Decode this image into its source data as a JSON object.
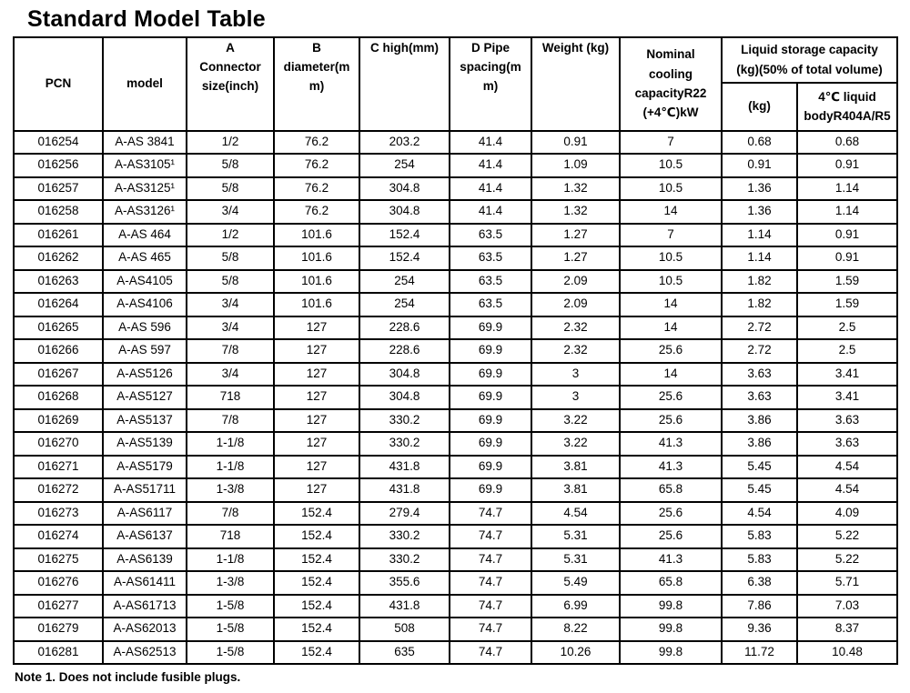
{
  "title": "Standard Model Table",
  "note": "Note 1. Does not include fusible plugs.",
  "table": {
    "headers": {
      "pcn": "PCN",
      "model": "model",
      "connector": "A\nConnector\nsize(inch)",
      "diameter": "B\ndiameter(m\nm)",
      "high": "C high(mm)",
      "pipe": "D Pipe\nspacing(m\nm)",
      "weight": "Weight (kg)",
      "cooling": "Nominal\ncooling\ncapacityR22\n(+4℃)kW",
      "storage_group": "Liquid storage capacity\n(kg)(50% of total volume)",
      "storage_kg": "(kg)",
      "storage_4c": "4℃ liquid\nbodyR404A/R5"
    },
    "rows": [
      [
        "016254",
        "A-AS 3841",
        "1/2",
        "76.2",
        "203.2",
        "41.4",
        "0.91",
        "7",
        "0.68",
        "0.68"
      ],
      [
        "016256",
        "A-AS3105¹",
        "5/8",
        "76.2",
        "254",
        "41.4",
        "1.09",
        "10.5",
        "0.91",
        "0.91"
      ],
      [
        "016257",
        "A-AS3125¹",
        "5/8",
        "76.2",
        "304.8",
        "41.4",
        "1.32",
        "10.5",
        "1.36",
        "1.14"
      ],
      [
        "016258",
        "A-AS3126¹",
        "3/4",
        "76.2",
        "304.8",
        "41.4",
        "1.32",
        "14",
        "1.36",
        "1.14"
      ],
      [
        "016261",
        "A-AS 464",
        "1/2",
        "101.6",
        "152.4",
        "63.5",
        "1.27",
        "7",
        "1.14",
        "0.91"
      ],
      [
        "016262",
        "A-AS 465",
        "5/8",
        "101.6",
        "152.4",
        "63.5",
        "1.27",
        "10.5",
        "1.14",
        "0.91"
      ],
      [
        "016263",
        "A-AS4105",
        "5/8",
        "101.6",
        "254",
        "63.5",
        "2.09",
        "10.5",
        "1.82",
        "1.59"
      ],
      [
        "016264",
        "A-AS4106",
        "3/4",
        "101.6",
        "254",
        "63.5",
        "2.09",
        "14",
        "1.82",
        "1.59"
      ],
      [
        "016265",
        "A-AS 596",
        "3/4",
        "127",
        "228.6",
        "69.9",
        "2.32",
        "14",
        "2.72",
        "2.5"
      ],
      [
        "016266",
        "A-AS 597",
        "7/8",
        "127",
        "228.6",
        "69.9",
        "2.32",
        "25.6",
        "2.72",
        "2.5"
      ],
      [
        "016267",
        "A-AS5126",
        "3/4",
        "127",
        "304.8",
        "69.9",
        "3",
        "14",
        "3.63",
        "3.41"
      ],
      [
        "016268",
        "A-AS5127",
        "718",
        "127",
        "304.8",
        "69.9",
        "3",
        "25.6",
        "3.63",
        "3.41"
      ],
      [
        "016269",
        "A-AS5137",
        "7/8",
        "127",
        "330.2",
        "69.9",
        "3.22",
        "25.6",
        "3.86",
        "3.63"
      ],
      [
        "016270",
        "A-AS5139",
        "1-1/8",
        "127",
        "330.2",
        "69.9",
        "3.22",
        "41.3",
        "3.86",
        "3.63"
      ],
      [
        "016271",
        "A-AS5179",
        "1-1/8",
        "127",
        "431.8",
        "69.9",
        "3.81",
        "41.3",
        "5.45",
        "4.54"
      ],
      [
        "016272",
        "A-AS51711",
        "1-3/8",
        "127",
        "431.8",
        "69.9",
        "3.81",
        "65.8",
        "5.45",
        "4.54"
      ],
      [
        "016273",
        "A-AS6117",
        "7/8",
        "152.4",
        "279.4",
        "74.7",
        "4.54",
        "25.6",
        "4.54",
        "4.09"
      ],
      [
        "016274",
        "A-AS6137",
        "718",
        "152.4",
        "330.2",
        "74.7",
        "5.31",
        "25.6",
        "5.83",
        "5.22"
      ],
      [
        "016275",
        "A-AS6139",
        "1-1/8",
        "152.4",
        "330.2",
        "74.7",
        "5.31",
        "41.3",
        "5.83",
        "5.22"
      ],
      [
        "016276",
        "A-AS61411",
        "1-3/8",
        "152.4",
        "355.6",
        "74.7",
        "5.49",
        "65.8",
        "6.38",
        "5.71"
      ],
      [
        "016277",
        "A-AS61713",
        "1-5/8",
        "152.4",
        "431.8",
        "74.7",
        "6.99",
        "99.8",
        "7.86",
        "7.03"
      ],
      [
        "016279",
        "A-AS62013",
        "1-5/8",
        "152.4",
        "508",
        "74.7",
        "8.22",
        "99.8",
        "9.36",
        "8.37"
      ],
      [
        "016281",
        "A-AS62513",
        "1-5/8",
        "152.4",
        "635",
        "74.7",
        "10.26",
        "99.8",
        "11.72",
        "10.48"
      ]
    ]
  }
}
